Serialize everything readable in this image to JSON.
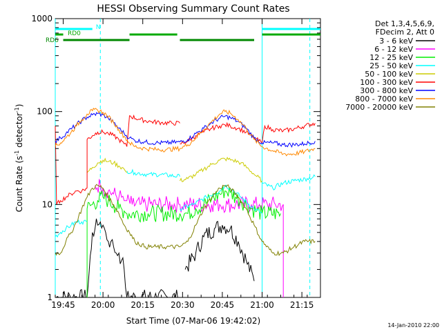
{
  "chart_data": {
    "type": "line",
    "title": "HESSI Observing Summary Count Rates",
    "xlabel": "Start Time (07-Mar-06 19:42:02)",
    "ylabel": "Count Rate (s⁻¹ detector⁻¹)",
    "ylabel_parts": {
      "pre": "Count Rate (s",
      "sup1": "-1",
      "mid": " detector",
      "sup2": "-1",
      "post": ")"
    },
    "y_scale": "log",
    "ylim": [
      1,
      1000
    ],
    "xlim_minutes": [
      0,
      100
    ],
    "x_ticks": [
      {
        "label": "19:45",
        "minute": 3
      },
      {
        "label": "20:00",
        "minute": 18
      },
      {
        "label": "20:15",
        "minute": 33
      },
      {
        "label": "20:30",
        "minute": 48
      },
      {
        "label": "20:45",
        "minute": 63
      },
      {
        "label": "21:00",
        "minute": 78
      },
      {
        "label": "21:15",
        "minute": 93
      }
    ],
    "y_ticks": [
      {
        "label": "1",
        "value": 1
      },
      {
        "label": "10",
        "value": 10
      },
      {
        "label": "100",
        "value": 100
      },
      {
        "label": "1000",
        "value": 1000
      }
    ],
    "legend": {
      "position": "right",
      "header": [
        "Det 1,3,4,5,6,9,",
        "FDecim 2, Att 0"
      ]
    },
    "flags": [
      {
        "label": "N",
        "color": "#00ffff",
        "segments": [
          [
            0,
            14
          ],
          [
            78,
            100
          ]
        ]
      },
      {
        "label": "RD0",
        "color": "#00aa00",
        "segments": [
          [
            0,
            3
          ],
          [
            28,
            46
          ],
          [
            78,
            100
          ]
        ]
      },
      {
        "label": "RD6",
        "color": "#008800",
        "segments": [
          [
            3,
            28
          ],
          [
            47,
            75
          ]
        ]
      }
    ],
    "vlines_solid": [
      0,
      78
    ],
    "vlines_dashed": [
      17,
      96
    ],
    "series": [
      {
        "name": "3 - 6 keV",
        "color": "#000000",
        "segments": [
          {
            "x": [
              0,
              12,
              14,
              15,
              16,
              17,
              18,
              19,
              20,
              21,
              22,
              23,
              24,
              25,
              26,
              27
            ],
            "y": [
              1,
              1,
              5,
              5.5,
              6,
              6.5,
              6,
              5,
              4,
              4,
              3.5,
              3,
              3,
              2.5,
              2,
              1
            ]
          },
          {
            "x": [
              27,
              47
            ],
            "y": [
              1,
              1
            ]
          },
          {
            "x": [
              49,
              53,
              56,
              60,
              63,
              66,
              69,
              72,
              75
            ],
            "y": [
              2,
              3,
              4.5,
              5.5,
              6,
              5.5,
              4,
              2.5,
              1.5
            ]
          }
        ]
      },
      {
        "name": "6 - 12 keV",
        "color": "#ff00ff",
        "segments": [
          {
            "x": [
              15,
              17,
              18,
              20,
              22,
              24,
              25,
              26,
              27,
              29,
              32,
              35,
              38,
              41,
              44,
              47,
              50,
              53,
              56,
              59,
              62,
              65,
              68,
              71,
              74,
              77,
              80,
              83,
              86
            ],
            "y": [
              16,
              16,
              15,
              14,
              13,
              12,
              12,
              11,
              11,
              10,
              10,
              10,
              10,
              10,
              10,
              10,
              10,
              10,
              10,
              10,
              10,
              10,
              10,
              10,
              10,
              10,
              10,
              10,
              10
            ]
          },
          {
            "x": [
              86,
              86
            ],
            "y": [
              10,
              1
            ]
          }
        ]
      },
      {
        "name": "12 - 25 keV",
        "color": "#00ee00",
        "segments": [
          {
            "x": [
              0,
              0
            ],
            "y": [
              1,
              1
            ]
          },
          {
            "x": [
              12,
              12,
              14,
              16,
              18,
              20,
              22,
              24,
              26,
              27
            ],
            "y": [
              1,
              9,
              10,
              11,
              12,
              11,
              10,
              9,
              8.5,
              8
            ]
          },
          {
            "x": [
              27,
              35,
              47
            ],
            "y": [
              8,
              8,
              8
            ]
          },
          {
            "x": [
              47,
              50,
              53,
              56,
              59,
              62,
              64,
              66,
              68,
              70,
              72,
              74,
              76,
              78
            ],
            "y": [
              8,
              8,
              9,
              10,
              11.5,
              13,
              14,
              13.5,
              12,
              11,
              10,
              9,
              8.5,
              8
            ]
          },
          {
            "x": [
              78,
              85
            ],
            "y": [
              8,
              8
            ]
          }
        ]
      },
      {
        "name": "25 - 50 keV",
        "color": "#00ffff",
        "segments": [
          {
            "x": [
              0,
              2,
              4,
              6,
              8,
              10,
              12
            ],
            "y": [
              4.5,
              5,
              5.5,
              6,
              6.5,
              6.5,
              6.5
            ]
          },
          {
            "x": [
              27,
              30,
              35,
              40,
              47
            ],
            "y": [
              23,
              22,
              21,
              21,
              20
            ]
          },
          {
            "x": [
              47,
              52,
              57,
              62,
              64,
              66,
              70,
              75,
              78
            ],
            "y": [
              9,
              10,
              12,
              14,
              16,
              15,
              12,
              9,
              8
            ]
          },
          {
            "x": [
              78,
              82,
              86,
              90,
              95,
              98
            ],
            "y": [
              17,
              15,
              17,
              18,
              19,
              20
            ]
          }
        ]
      },
      {
        "name": "50 - 100 keV",
        "color": "#cccc00",
        "segments": [
          {
            "x": [
              12,
              14,
              16,
              18,
              20,
              22,
              24,
              26,
              27
            ],
            "y": [
              22,
              25,
              28,
              30,
              29,
              28,
              26,
              24,
              22
            ]
          },
          {
            "x": [
              47,
              50,
              53,
              56,
              59,
              62,
              64,
              67,
              70,
              73,
              76,
              78
            ],
            "y": [
              18,
              19,
              21,
              24,
              27,
              30,
              31,
              30,
              28,
              24,
              20,
              18
            ]
          }
        ]
      },
      {
        "name": "100 - 300 keV",
        "color": "#ff0000",
        "segments": [
          {
            "x": [
              0,
              0.5,
              2,
              4,
              6,
              8,
              10,
              12
            ],
            "y": [
              70,
              10,
              11,
              12,
              13,
              14,
              14,
              15
            ]
          },
          {
            "x": [
              12,
              12,
              14,
              16,
              18,
              20,
              22,
              24,
              26,
              27
            ],
            "y": [
              15,
              50,
              55,
              60,
              60,
              58,
              55,
              50,
              45,
              42
            ]
          },
          {
            "x": [
              27,
              28,
              32,
              36,
              40,
              44,
              47
            ],
            "y": [
              42,
              90,
              82,
              78,
              76,
              75,
              75
            ]
          },
          {
            "x": [
              47,
              50,
              53,
              56,
              59,
              62,
              64,
              66,
              69,
              72,
              75,
              78
            ],
            "y": [
              45,
              48,
              55,
              60,
              66,
              70,
              72,
              70,
              66,
              60,
              52,
              46
            ]
          },
          {
            "x": [
              78,
              79,
              82,
              86,
              90,
              94,
              98
            ],
            "y": [
              46,
              70,
              64,
              62,
              65,
              70,
              75
            ]
          }
        ]
      },
      {
        "name": "300 - 800 keV",
        "color": "#0000ff",
        "segments": [
          {
            "x": [
              0,
              2,
              4,
              6,
              8,
              10,
              12,
              14,
              16,
              18,
              20,
              22,
              24,
              26,
              28,
              30,
              34,
              38,
              42,
              47
            ],
            "y": [
              48,
              52,
              58,
              65,
              72,
              80,
              87,
              92,
              95,
              92,
              85,
              76,
              66,
              58,
              52,
              49,
              47,
              46,
              46,
              47
            ]
          },
          {
            "x": [
              47,
              50,
              53,
              56,
              59,
              62,
              64,
              66,
              69,
              72,
              75,
              78,
              82,
              86,
              90,
              94,
              98
            ],
            "y": [
              47,
              50,
              58,
              66,
              76,
              85,
              89,
              86,
              78,
              66,
              52,
              46,
              46,
              44,
              44,
              45,
              48
            ]
          }
        ]
      },
      {
        "name": "800 - 7000 keV",
        "color": "#ff8800",
        "segments": [
          {
            "x": [
              0,
              2,
              4,
              6,
              8,
              10,
              12,
              14,
              16,
              18,
              20,
              22,
              24,
              26,
              28,
              30,
              34,
              38,
              42,
              47
            ],
            "y": [
              42,
              46,
              52,
              60,
              70,
              82,
              94,
              102,
              104,
              98,
              88,
              76,
              64,
              54,
              46,
              42,
              40,
              39,
              39,
              40
            ]
          },
          {
            "x": [
              47,
              50,
              53,
              56,
              59,
              62,
              64,
              66,
              69,
              72,
              75,
              78,
              82,
              86,
              90,
              94,
              98
            ],
            "y": [
              40,
              44,
              52,
              64,
              78,
              94,
              100,
              96,
              82,
              66,
              50,
              42,
              38,
              35,
              35,
              37,
              40
            ]
          }
        ]
      },
      {
        "name": "7000 - 20000 keV",
        "color": "#808000",
        "segments": [
          {
            "x": [
              0,
              2,
              4,
              6,
              8,
              10,
              12,
              14,
              16,
              18,
              20,
              22,
              24,
              26,
              28,
              30,
              34,
              38,
              42,
              47
            ],
            "y": [
              3,
              3,
              4,
              5,
              6.5,
              9,
              12,
              15,
              16,
              15,
              12,
              10,
              8,
              6,
              5,
              4,
              3.5,
              3.5,
              3.5,
              3.5
            ]
          },
          {
            "x": [
              47,
              50,
              53,
              56,
              59,
              62,
              64,
              66,
              69,
              72,
              75,
              78,
              82,
              86,
              90,
              94,
              98
            ],
            "y": [
              3.5,
              4,
              6,
              9,
              12,
              15,
              16,
              15,
              12,
              9,
              6,
              4,
              3,
              3,
              3.5,
              4,
              4
            ]
          }
        ]
      }
    ]
  },
  "footer_date": "14-Jan-2010 22:00"
}
